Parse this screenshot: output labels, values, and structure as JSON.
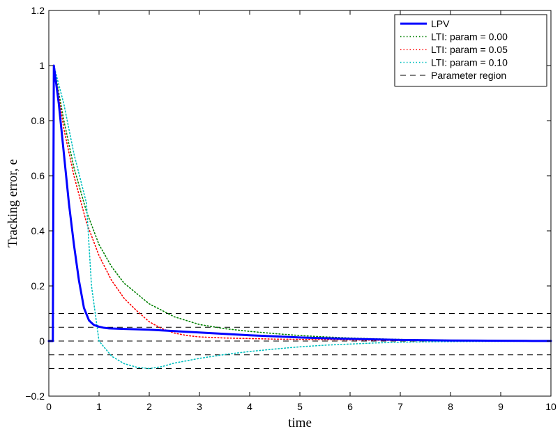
{
  "chart_data": {
    "type": "line",
    "title": "",
    "xlabel": "time",
    "ylabel": "Tracking error, e",
    "xlim": [
      0,
      10
    ],
    "ylim": [
      -0.2,
      1.2
    ],
    "xticks": [
      0,
      1,
      2,
      3,
      4,
      5,
      6,
      7,
      8,
      9,
      10
    ],
    "yticks": [
      -0.2,
      0,
      0.2,
      0.4,
      0.6,
      0.8,
      1,
      1.2
    ],
    "xtick_labels": [
      "0",
      "1",
      "2",
      "3",
      "4",
      "5",
      "6",
      "7",
      "8",
      "9",
      "10"
    ],
    "ytick_labels": [
      "−0.2",
      "0",
      "0.2",
      "0.4",
      "0.6",
      "0.8",
      "1",
      "1.2"
    ],
    "grid": false,
    "legend_position": "top-right",
    "series": [
      {
        "name": "LPV",
        "color": "#0000ff",
        "style": "solid",
        "x": [
          0,
          0.08,
          0.1,
          0.2,
          0.3,
          0.4,
          0.5,
          0.6,
          0.7,
          0.8,
          0.85,
          0.9,
          1.0,
          1.1,
          1.2,
          1.5,
          2.0,
          2.5,
          3.0,
          3.5,
          4.0,
          4.5,
          5.0,
          5.5,
          6.0,
          6.5,
          7.0,
          7.5,
          8.0,
          8.5,
          9.0,
          9.5,
          10.0
        ],
        "y": [
          0,
          0,
          1.0,
          0.86,
          0.68,
          0.5,
          0.35,
          0.22,
          0.12,
          0.075,
          0.066,
          0.058,
          0.052,
          0.048,
          0.046,
          0.044,
          0.041,
          0.036,
          0.031,
          0.026,
          0.021,
          0.017,
          0.013,
          0.01,
          0.008,
          0.006,
          0.004,
          0.003,
          0.002,
          0.0015,
          0.001,
          0.0005,
          0.0002
        ]
      },
      {
        "name": "LTI: param = 0.00",
        "color": "#008000",
        "style": "dotted",
        "x": [
          0,
          0.08,
          0.1,
          0.3,
          0.5,
          0.75,
          1.0,
          1.25,
          1.5,
          2.0,
          2.5,
          3.0,
          3.5,
          4.0,
          4.5,
          5.0,
          5.5,
          6.0,
          6.5,
          7.0,
          7.5,
          8.0,
          8.5,
          9.0,
          9.5,
          10.0
        ],
        "y": [
          0,
          0,
          1.0,
          0.8,
          0.63,
          0.47,
          0.35,
          0.27,
          0.21,
          0.135,
          0.088,
          0.06,
          0.045,
          0.035,
          0.027,
          0.02,
          0.015,
          0.011,
          0.008,
          0.006,
          0.004,
          0.003,
          0.002,
          0.0015,
          0.001,
          0.0005
        ]
      },
      {
        "name": "LTI: param = 0.05",
        "color": "#ff0000",
        "style": "dotted",
        "x": [
          0,
          0.08,
          0.1,
          0.3,
          0.5,
          0.75,
          1.0,
          1.25,
          1.5,
          1.75,
          2.0,
          2.25,
          2.5,
          2.75,
          3.0,
          3.5,
          4.0,
          4.5,
          5.0,
          5.5,
          6.0,
          6.5,
          7.0,
          7.5,
          8.0,
          9.0,
          10.0
        ],
        "y": [
          0,
          0,
          1.0,
          0.77,
          0.6,
          0.43,
          0.31,
          0.22,
          0.155,
          0.11,
          0.07,
          0.045,
          0.029,
          0.02,
          0.015,
          0.011,
          0.009,
          0.007,
          0.006,
          0.005,
          0.004,
          0.003,
          0.002,
          0.0015,
          0.001,
          0.0005,
          0.0002
        ]
      },
      {
        "name": "LTI: param = 0.10",
        "color": "#00bfbf",
        "style": "dotted",
        "x": [
          0,
          0.08,
          0.1,
          0.3,
          0.5,
          0.75,
          0.85,
          1.0,
          1.25,
          1.5,
          1.75,
          2.0,
          2.25,
          2.5,
          3.0,
          3.5,
          4.0,
          4.5,
          5.0,
          5.5,
          6.0,
          6.5,
          7.0,
          7.5,
          8.0,
          9.0,
          10.0
        ],
        "y": [
          0,
          0,
          1.0,
          0.86,
          0.68,
          0.5,
          0.2,
          0.0,
          -0.055,
          -0.082,
          -0.095,
          -0.1,
          -0.093,
          -0.08,
          -0.063,
          -0.049,
          -0.038,
          -0.029,
          -0.021,
          -0.015,
          -0.011,
          -0.007,
          -0.004,
          -0.003,
          -0.002,
          -0.001,
          -0.0003
        ]
      }
    ],
    "reference_lines": {
      "name": "Parameter region",
      "color": "#000000",
      "style": "dashed",
      "y_values": [
        0.1,
        0.05,
        0,
        -0.05,
        -0.1
      ]
    }
  }
}
